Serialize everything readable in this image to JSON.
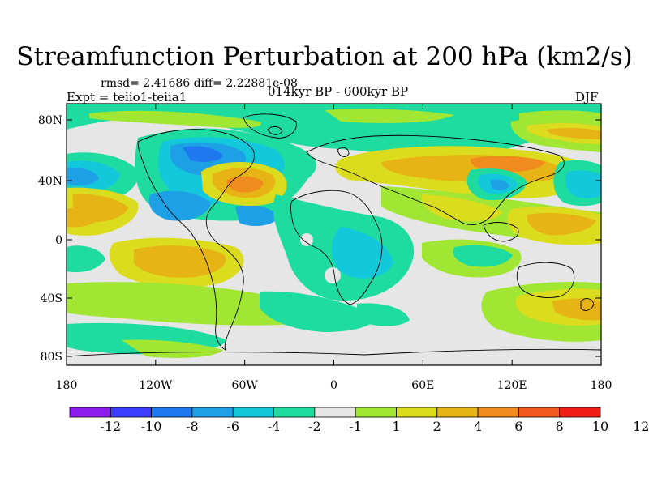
{
  "header": {
    "title": "Streamfunction Perturbation at 200 hPa (km2/s)",
    "stats": "rmsd= 2.41686 diff= 2.22881e-08",
    "experiment": "Expt = teiio1-teiia1",
    "period": "014kyr BP - 000kyr BP",
    "season": "DJF"
  },
  "map": {
    "projection": "cylindrical equidistant",
    "lat_labels": [
      "80N",
      "40N",
      "0",
      "40S",
      "80S"
    ],
    "lon_labels": [
      "180",
      "120W",
      "60W",
      "0",
      "60E",
      "120E",
      "180"
    ]
  },
  "colorbar": {
    "labels": [
      "-12",
      "-10",
      "-8",
      "-6",
      "-4",
      "-2",
      "-1",
      "1",
      "2",
      "4",
      "6",
      "8",
      "10",
      "12"
    ],
    "colors": [
      "#8c1cf0",
      "#3c3cff",
      "#1e78f0",
      "#1ea0e6",
      "#14c8dc",
      "#1edca0",
      "#e6e6e6",
      "#a0e632",
      "#dcdc1e",
      "#e6b414",
      "#f08c1e",
      "#f05a1e",
      "#f01e14"
    ]
  }
}
